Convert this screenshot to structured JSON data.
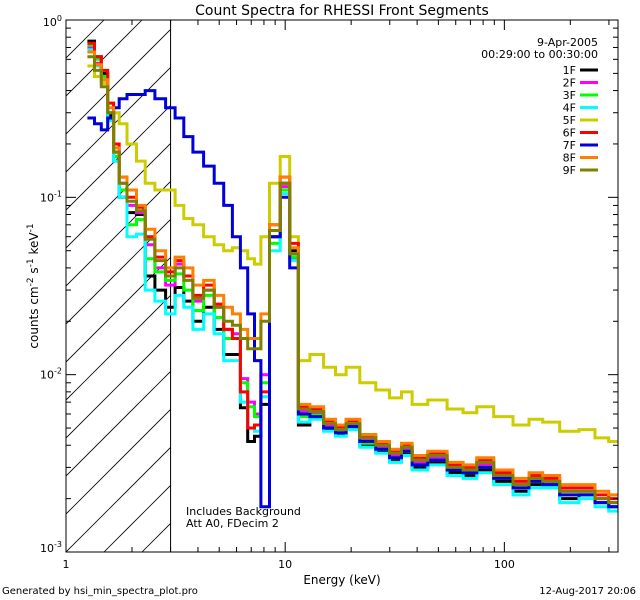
{
  "chart_data": {
    "type": "line",
    "title": "Count Spectra for RHESSI Front Segments",
    "xlabel": "Energy (keV)",
    "ylabel_main": "counts cm",
    "ylabel_sup1": "-2",
    "ylabel_mid1": " s",
    "ylabel_sup2": "-1",
    "ylabel_mid2": " keV",
    "ylabel_sup3": "-1",
    "x_scale": "log",
    "y_scale": "log",
    "xlim": [
      1.0,
      330
    ],
    "ylim": [
      0.001,
      1.0
    ],
    "x_tick_labels": [
      {
        "value": 1,
        "label": "1"
      },
      {
        "value": 10,
        "label": "10"
      },
      {
        "value": 100,
        "label": "100"
      }
    ],
    "y_tick_labels": [
      {
        "value": 1.0,
        "base": "10",
        "exp": "0"
      },
      {
        "value": 0.1,
        "base": "10",
        "exp": "-1"
      },
      {
        "value": 0.01,
        "base": "10",
        "exp": "-2"
      },
      {
        "value": 0.001,
        "base": "10",
        "exp": "-3"
      }
    ],
    "hatched_region_keV": [
      1.0,
      3.0
    ],
    "date": "9-Apr-2005",
    "time_range": "00:29:00 to 00:30:00",
    "annotation_lines": [
      "Includes Background",
      "Att A0, FDecim 2"
    ],
    "footer_left": "Generated by hsi_min_spectra_plot.pro",
    "footer_right": "12-Aug-2017 20:06",
    "legend_position": "top-right",
    "series": [
      {
        "name": "1F",
        "color": "#000000",
        "values": [
          0.76,
          0.62,
          0.5,
          0.29,
          0.18,
          0.1,
          0.082,
          0.08,
          0.036,
          0.03,
          0.024,
          0.031,
          0.026,
          0.02,
          0.024,
          0.018,
          0.013,
          0.013,
          0.0065,
          0.0042,
          0.0045,
          0.0068,
          0.06,
          0.12,
          0.05,
          0.0052,
          0.0057,
          0.0049,
          0.0046,
          0.005,
          0.004,
          0.0037,
          0.0033,
          0.0036,
          0.003,
          0.0032,
          0.0028,
          0.0027,
          0.0029,
          0.0025,
          0.0022,
          0.0024,
          0.0024,
          0.002,
          0.0021,
          0.0019,
          0.0018
        ]
      },
      {
        "name": "2F",
        "color": "#ff00ff",
        "values": [
          0.7,
          0.57,
          0.46,
          0.3,
          0.16,
          0.12,
          0.09,
          0.082,
          0.054,
          0.04,
          0.032,
          0.042,
          0.036,
          0.026,
          0.03,
          0.024,
          0.018,
          0.017,
          0.0095,
          0.007,
          0.006,
          0.01,
          0.065,
          0.115,
          0.045,
          0.0062,
          0.0061,
          0.0052,
          0.0049,
          0.0052,
          0.0043,
          0.0039,
          0.0035,
          0.0038,
          0.0032,
          0.0034,
          0.003,
          0.0029,
          0.0031,
          0.0027,
          0.0024,
          0.0026,
          0.0025,
          0.0022,
          0.0022,
          0.002,
          0.0019
        ]
      },
      {
        "name": "3F",
        "color": "#00ff00",
        "values": [
          0.72,
          0.6,
          0.48,
          0.28,
          0.17,
          0.11,
          0.07,
          0.075,
          0.045,
          0.038,
          0.034,
          0.037,
          0.03,
          0.023,
          0.028,
          0.021,
          0.016,
          0.016,
          0.009,
          0.0066,
          0.0058,
          0.009,
          0.055,
          0.11,
          0.046,
          0.0058,
          0.0059,
          0.005,
          0.0047,
          0.0051,
          0.0041,
          0.0038,
          0.0034,
          0.0037,
          0.0031,
          0.0033,
          0.0029,
          0.0028,
          0.003,
          0.0026,
          0.0023,
          0.0025,
          0.0024,
          0.0021,
          0.0021,
          0.0019,
          0.0018
        ]
      },
      {
        "name": "4F",
        "color": "#00ffff",
        "values": [
          0.68,
          0.55,
          0.44,
          0.27,
          0.16,
          0.1,
          0.06,
          0.062,
          0.03,
          0.026,
          0.022,
          0.028,
          0.024,
          0.018,
          0.022,
          0.017,
          0.012,
          0.012,
          0.007,
          0.005,
          0.0048,
          0.0075,
          0.05,
          0.105,
          0.044,
          0.0054,
          0.0056,
          0.0048,
          0.0045,
          0.0049,
          0.0039,
          0.0036,
          0.0032,
          0.0035,
          0.0029,
          0.0031,
          0.0027,
          0.0026,
          0.0028,
          0.0024,
          0.0021,
          0.0023,
          0.0023,
          0.0019,
          0.002,
          0.0018,
          0.0017
        ]
      },
      {
        "name": "5F",
        "color": "#cccc00",
        "values": [
          0.55,
          0.48,
          0.44,
          0.34,
          0.3,
          0.26,
          0.2,
          0.16,
          0.12,
          0.11,
          0.11,
          0.09,
          0.076,
          0.07,
          0.06,
          0.054,
          0.05,
          0.052,
          0.05,
          0.045,
          0.042,
          0.06,
          0.12,
          0.17,
          0.06,
          0.012,
          0.013,
          0.011,
          0.01,
          0.011,
          0.009,
          0.0082,
          0.0074,
          0.008,
          0.0068,
          0.0072,
          0.0064,
          0.0061,
          0.0066,
          0.0058,
          0.0052,
          0.0056,
          0.0054,
          0.0048,
          0.0049,
          0.0044,
          0.0042
        ]
      },
      {
        "name": "6F",
        "color": "#ff0000",
        "values": [
          0.74,
          0.62,
          0.52,
          0.34,
          0.2,
          0.13,
          0.1,
          0.088,
          0.06,
          0.046,
          0.038,
          0.044,
          0.036,
          0.028,
          0.032,
          0.025,
          0.018,
          0.016,
          0.008,
          0.005,
          0.0052,
          0.008,
          0.07,
          0.13,
          0.055,
          0.0066,
          0.0064,
          0.0055,
          0.0051,
          0.0055,
          0.0045,
          0.0041,
          0.0037,
          0.004,
          0.0034,
          0.0036,
          0.0031,
          0.003,
          0.0033,
          0.0028,
          0.0025,
          0.0027,
          0.0026,
          0.0023,
          0.0023,
          0.0021,
          0.002
        ]
      },
      {
        "name": "7F",
        "color": "#0000dd",
        "values": [
          0.28,
          0.26,
          0.24,
          0.28,
          0.32,
          0.36,
          0.38,
          0.38,
          0.4,
          0.36,
          0.32,
          0.28,
          0.22,
          0.18,
          0.15,
          0.12,
          0.09,
          0.06,
          0.04,
          0.022,
          0.012,
          0.0018,
          0.06,
          0.1,
          0.04,
          0.006,
          0.0058,
          0.005,
          0.0047,
          0.0051,
          0.0042,
          0.0038,
          0.0034,
          0.0037,
          0.0031,
          0.0033,
          0.0029,
          0.0028,
          0.003,
          0.0026,
          0.0023,
          0.0025,
          0.0024,
          0.0021,
          0.0021,
          0.0019,
          0.0018
        ]
      },
      {
        "name": "8F",
        "color": "#ff8000",
        "values": [
          0.66,
          0.56,
          0.46,
          0.32,
          0.19,
          0.13,
          0.11,
          0.09,
          0.066,
          0.05,
          0.04,
          0.046,
          0.04,
          0.032,
          0.034,
          0.028,
          0.024,
          0.022,
          0.018,
          0.016,
          0.016,
          0.022,
          0.07,
          0.13,
          0.052,
          0.0068,
          0.0066,
          0.0056,
          0.0052,
          0.0056,
          0.0046,
          0.0042,
          0.0038,
          0.0041,
          0.0035,
          0.0037,
          0.0032,
          0.0031,
          0.0034,
          0.0029,
          0.0026,
          0.0028,
          0.0027,
          0.0024,
          0.0024,
          0.0022,
          0.0021
        ]
      },
      {
        "name": "9F",
        "color": "#808000",
        "values": [
          0.62,
          0.52,
          0.42,
          0.3,
          0.18,
          0.12,
          0.095,
          0.084,
          0.058,
          0.044,
          0.036,
          0.04,
          0.034,
          0.027,
          0.03,
          0.024,
          0.02,
          0.019,
          0.016,
          0.014,
          0.014,
          0.02,
          0.065,
          0.12,
          0.048,
          0.0064,
          0.0062,
          0.0053,
          0.0049,
          0.0053,
          0.0044,
          0.004,
          0.0036,
          0.0039,
          0.0033,
          0.0035,
          0.003,
          0.0029,
          0.0032,
          0.0027,
          0.0024,
          0.0026,
          0.0025,
          0.0022,
          0.0022,
          0.002,
          0.0019
        ]
      }
    ],
    "energy_bins_keV": [
      1.3,
      1.4,
      1.5,
      1.6,
      1.7,
      1.8,
      2.0,
      2.2,
      2.4,
      2.7,
      3.0,
      3.3,
      3.6,
      4.0,
      4.5,
      5.0,
      5.5,
      6.0,
      6.5,
      7.0,
      7.5,
      8.0,
      9.0,
      10.0,
      11.0,
      12.0,
      14.0,
      16.0,
      18.0,
      20.0,
      24.0,
      28.0,
      32.0,
      36.0,
      40.0,
      50.0,
      60.0,
      70.0,
      80.0,
      100.0,
      120.0,
      140.0,
      160.0,
      200.0,
      240.0,
      280.0,
      320.0
    ]
  }
}
